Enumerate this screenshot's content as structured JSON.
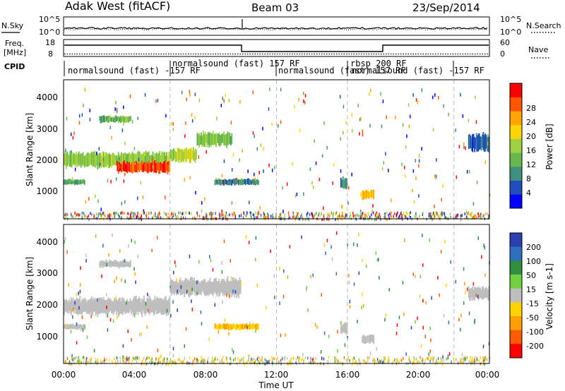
{
  "header": {
    "station": "Adak West (fitACF)",
    "beam": "Beam 03",
    "date": "23/Sep/2014"
  },
  "top_panels": {
    "noise_left_label": "N.Sky",
    "noise_right_label": "N.Search",
    "noise_ticks_left": [
      "10^5",
      "10^0"
    ],
    "noise_ticks_right": [
      "10^5",
      "10^0"
    ],
    "freq_label_line1": "Freq.",
    "freq_label_line2": "[MHz]",
    "freq_ticks": [
      "18",
      "8"
    ],
    "nave_label": "Nave",
    "nave_ticks": [
      "60",
      "0"
    ],
    "cpid_label": "CPID",
    "cpid_segments": [
      {
        "label": "normalsound (fast) -157 RF",
        "start_hour": 0,
        "end_hour": 6
      },
      {
        "label": "normalsound (fast) 157 RF",
        "start_hour": 6,
        "end_hour": 12
      },
      {
        "label": "normalsound (fast) 157 RF",
        "start_hour": 12,
        "end_hour": 16
      },
      {
        "label": "rbsp 200 RF",
        "start_hour": 16,
        "end_hour": 18
      },
      {
        "label": "normalsound (fast) -157 RF",
        "start_hour": 16.3,
        "end_hour": 22
      }
    ]
  },
  "x_axis": {
    "title": "Time UT",
    "ticks": [
      "00:00",
      "04:00",
      "08:00",
      "12:00",
      "16:00",
      "20:00",
      "00:00"
    ]
  },
  "colors": {
    "power": [
      "#0000ff",
      "#1f4fbf",
      "#3f8f7f",
      "#66b84f",
      "#9fd03f",
      "#ffd700",
      "#ffa500",
      "#ff5500",
      "#ff0000"
    ],
    "velocity": [
      "#2a3fb0",
      "#2f6fbf",
      "#2f8f3f",
      "#6fcf3f",
      "#bebebe",
      "#ffd200",
      "#ff9f00",
      "#ff5a00",
      "#ff0000"
    ]
  },
  "chart_data": [
    {
      "type": "heatmap",
      "panel": "power",
      "ylabel": "Slant Range [km]",
      "xlabel": "Time UT",
      "xlim": [
        0,
        24
      ],
      "ylim": [
        180,
        4600
      ],
      "y_ticks": [
        "1000",
        "2000",
        "3000",
        "4000"
      ],
      "colorbar_label": "Power [dB]",
      "colorbar_ticks": [
        "4",
        "8",
        "12",
        "16",
        "20",
        "24",
        "28"
      ],
      "colorbar_range": [
        0,
        30
      ],
      "regions": [
        {
          "t0": 0.0,
          "t1": 6.0,
          "r_center": 2050,
          "r_half": 220,
          "value": 14
        },
        {
          "t0": 3.0,
          "t1": 6.0,
          "r_center": 1820,
          "r_half": 160,
          "value": 26
        },
        {
          "t0": 6.0,
          "t1": 7.5,
          "r_center": 2200,
          "r_half": 200,
          "value": 16
        },
        {
          "t0": 7.5,
          "t1": 9.5,
          "r_center": 2700,
          "r_half": 200,
          "value": 12
        },
        {
          "t0": 0.0,
          "t1": 1.2,
          "r_center": 1350,
          "r_half": 80,
          "value": 10
        },
        {
          "t0": 2.0,
          "t1": 3.8,
          "r_center": 3350,
          "r_half": 100,
          "value": 12
        },
        {
          "t0": 8.5,
          "t1": 11.0,
          "r_center": 1350,
          "r_half": 90,
          "value": 8
        },
        {
          "t0": 15.6,
          "t1": 16.0,
          "r_center": 1300,
          "r_half": 170,
          "value": 8
        },
        {
          "t0": 16.8,
          "t1": 17.5,
          "r_center": 950,
          "r_half": 130,
          "value": 20
        },
        {
          "t0": 22.8,
          "t1": 24.0,
          "r_center": 2600,
          "r_half": 250,
          "value": 6
        }
      ]
    },
    {
      "type": "heatmap",
      "panel": "velocity",
      "ylabel": "Slant Range [km]",
      "xlabel": "Time UT",
      "xlim": [
        0,
        24
      ],
      "ylim": [
        180,
        4600
      ],
      "y_ticks": [
        "1000",
        "2000",
        "3000",
        "4000"
      ],
      "colorbar_label": "Velocity [m s-1]",
      "colorbar_ticks": [
        "200",
        "100",
        "50",
        "15",
        "-15",
        "-50",
        "-100",
        "-200"
      ],
      "colorbar_range": [
        -250,
        250
      ],
      "regions": [
        {
          "t0": 0.0,
          "t1": 6.0,
          "r_center": 2000,
          "r_half": 250,
          "value": 0
        },
        {
          "t0": 6.0,
          "t1": 10.0,
          "r_center": 2600,
          "r_half": 250,
          "value": 0
        },
        {
          "t0": 2.0,
          "t1": 3.8,
          "r_center": 3350,
          "r_half": 100,
          "value": 0
        },
        {
          "t0": 0.0,
          "t1": 1.2,
          "r_center": 1350,
          "r_half": 80,
          "value": 0
        },
        {
          "t0": 8.5,
          "t1": 11.0,
          "r_center": 1350,
          "r_half": 90,
          "value": -80
        },
        {
          "t0": 15.6,
          "t1": 16.0,
          "r_center": 1300,
          "r_half": 170,
          "value": 0
        },
        {
          "t0": 16.8,
          "t1": 17.5,
          "r_center": 950,
          "r_half": 130,
          "value": 0
        },
        {
          "t0": 22.8,
          "t1": 24.0,
          "r_center": 2400,
          "r_half": 200,
          "value": 0
        }
      ]
    }
  ]
}
